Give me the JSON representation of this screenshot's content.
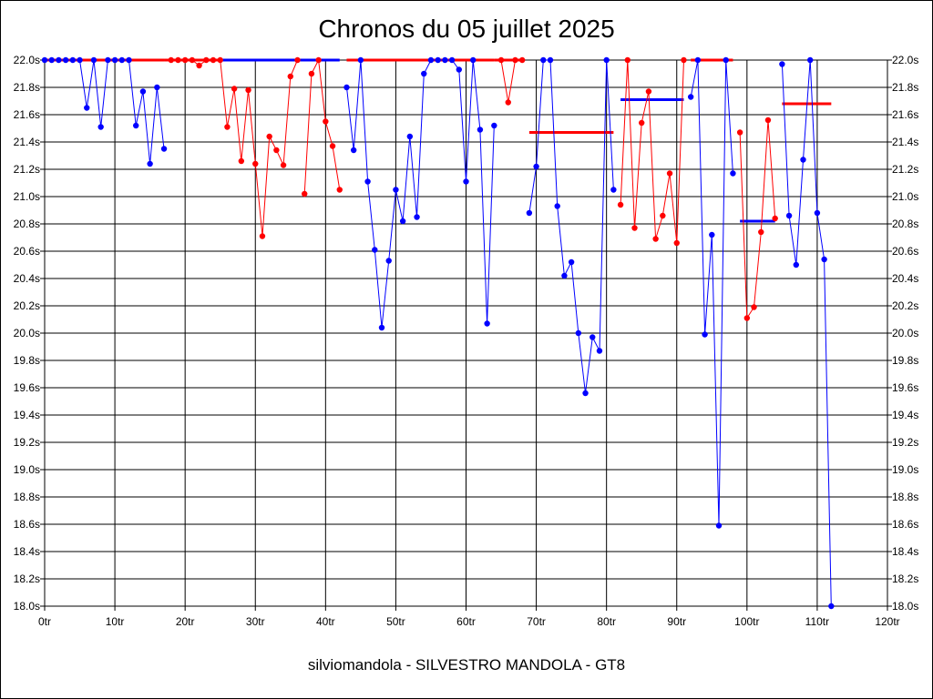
{
  "chart_data": {
    "type": "line",
    "title": "Chronos du 05 juillet 2025",
    "subtitle": "silviomandola - SILVESTRO MANDOLA - GT8",
    "xlabel": "",
    "ylabel": "",
    "xlim": [
      0,
      120
    ],
    "ylim": [
      18.0,
      22.0
    ],
    "x_ticks": [
      0,
      10,
      20,
      30,
      40,
      50,
      60,
      70,
      80,
      90,
      100,
      110,
      120
    ],
    "y_ticks": [
      18.0,
      18.2,
      18.4,
      18.6,
      18.8,
      19.0,
      19.2,
      19.4,
      19.6,
      19.8,
      20.0,
      20.2,
      20.4,
      20.6,
      20.8,
      21.0,
      21.2,
      21.4,
      21.6,
      21.8,
      22.0
    ],
    "x_tick_suffix": "tr",
    "y_tick_suffix": "s",
    "grid": true,
    "legend": "none",
    "series": [
      {
        "color": "#0000ff",
        "x": [
          0,
          1,
          2,
          3,
          4,
          5,
          6,
          7,
          8,
          9,
          10,
          11,
          12,
          13,
          14,
          15,
          16,
          17
        ],
        "y": [
          22.0,
          22.0,
          22.0,
          22.0,
          22.0,
          22.0,
          21.65,
          22.0,
          21.51,
          22.0,
          22.0,
          22.0,
          22.0,
          21.52,
          21.77,
          21.24,
          21.8,
          21.35
        ]
      },
      {
        "color": "#ff0000",
        "x": [
          18,
          19,
          20,
          21,
          22,
          23,
          24,
          25,
          26,
          27,
          28,
          29,
          30,
          31,
          32,
          33,
          34,
          35,
          36
        ],
        "y": [
          22.0,
          22.0,
          22.0,
          22.0,
          21.96,
          22.0,
          22.0,
          22.0,
          21.51,
          21.79,
          21.26,
          21.78,
          21.24,
          20.71,
          21.44,
          21.34,
          21.23,
          21.88,
          22.0
        ]
      },
      {
        "color": "#ff0000",
        "x": [
          37,
          38,
          39,
          40,
          41,
          42
        ],
        "y": [
          21.02,
          21.9,
          22.0,
          21.55,
          21.37,
          21.05
        ]
      },
      {
        "color": "#0000ff",
        "x": [
          43,
          44,
          45,
          46,
          47,
          48,
          49,
          50,
          51,
          52,
          53,
          54,
          55,
          56,
          57,
          58,
          59,
          60,
          61,
          62,
          63,
          64
        ],
        "y": [
          21.8,
          21.34,
          22.0,
          21.11,
          20.61,
          20.04,
          20.53,
          21.05,
          20.82,
          21.44,
          20.85,
          21.9,
          22.0,
          22.0,
          22.0,
          22.0,
          21.93,
          21.11,
          22.0,
          21.49,
          20.07,
          21.52
        ]
      },
      {
        "color": "#ff0000",
        "x": [
          65,
          66,
          67,
          68
        ],
        "y": [
          22.0,
          21.69,
          22.0,
          22.0
        ]
      },
      {
        "color": "#0000ff",
        "x": [
          69,
          70,
          71,
          72,
          73,
          74,
          75,
          76,
          77,
          78,
          79,
          80,
          81
        ],
        "y": [
          20.88,
          21.22,
          22.0,
          22.0,
          20.93,
          20.42,
          20.52,
          20.0,
          19.56,
          19.97,
          19.87,
          22.0,
          21.05
        ]
      },
      {
        "color": "#ff0000",
        "x": [
          82,
          83,
          84,
          85,
          86,
          87,
          88,
          89,
          90,
          91
        ],
        "y": [
          20.94,
          22.0,
          20.77,
          21.54,
          21.77,
          20.69,
          20.86,
          21.17,
          20.66,
          22.0
        ]
      },
      {
        "color": "#0000ff",
        "x": [
          92,
          93,
          94,
          95,
          96,
          97,
          98
        ],
        "y": [
          21.73,
          22.0,
          19.99,
          20.72,
          18.59,
          22.0,
          21.17
        ]
      },
      {
        "color": "#ff0000",
        "x": [
          99,
          100,
          101,
          102,
          103,
          104
        ],
        "y": [
          21.47,
          20.11,
          20.19,
          20.74,
          21.56,
          20.84
        ]
      },
      {
        "color": "#0000ff",
        "x": [
          105,
          106,
          107,
          108,
          109,
          110,
          111,
          112
        ],
        "y": [
          21.97,
          20.86,
          20.5,
          21.27,
          22.0,
          20.88,
          20.54,
          18.0
        ]
      }
    ],
    "segments": [
      {
        "color": "#ff0000",
        "x": [
          0,
          17
        ],
        "y": 22.0
      },
      {
        "color": "#ff0000",
        "x": [
          17,
          25
        ],
        "y": 22.0
      },
      {
        "color": "#0000ff",
        "x": [
          25,
          42
        ],
        "y": 22.0
      },
      {
        "color": "#ff0000",
        "x": [
          43,
          64
        ],
        "y": 22.0
      },
      {
        "color": "#ff0000",
        "x": [
          64,
          68
        ],
        "y": 22.0
      },
      {
        "color": "#ff0000",
        "x": [
          69,
          81
        ],
        "y": 21.47
      },
      {
        "color": "#0000ff",
        "x": [
          82,
          91
        ],
        "y": 21.71
      },
      {
        "color": "#ff0000",
        "x": [
          92,
          98
        ],
        "y": 22.0
      },
      {
        "color": "#0000ff",
        "x": [
          99,
          104
        ],
        "y": 20.82
      },
      {
        "color": "#ff0000",
        "x": [
          105,
          112
        ],
        "y": 21.68
      }
    ]
  }
}
